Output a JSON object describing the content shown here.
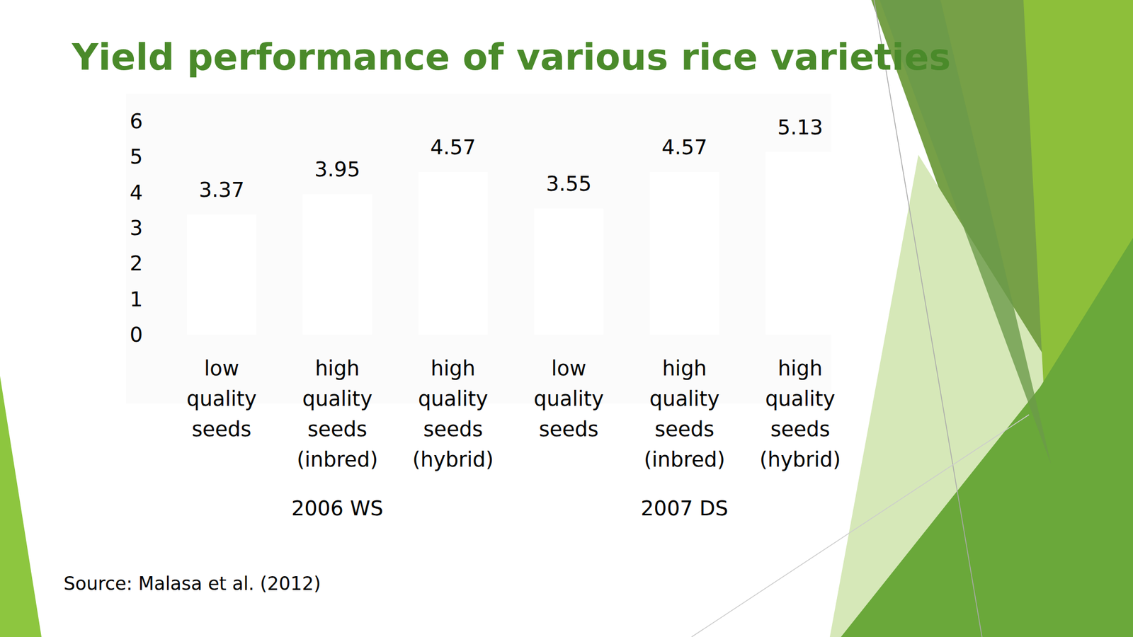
{
  "chart_data": {
    "type": "bar",
    "title": "Yield performance of various rice varieties",
    "categories": [
      "low quality seeds",
      "high quality seeds (inbred)",
      "high quality seeds (hybrid)",
      "low quality seeds",
      "high quality seeds (inbred)",
      "high quality seeds (hybrid)"
    ],
    "groups": [
      "2006 WS",
      "2006 WS",
      "2006 WS",
      "2007 DS",
      "2007 DS",
      "2007 DS"
    ],
    "values": [
      3.37,
      3.95,
      4.57,
      3.55,
      4.57,
      5.13
    ],
    "color": "#ffffff",
    "ylim": [
      0,
      6
    ],
    "yticks": [
      0,
      1,
      2,
      3,
      4,
      5,
      6
    ],
    "grid": false,
    "data_labels": true,
    "source": "Source: Malasa et al. (2012)"
  }
}
